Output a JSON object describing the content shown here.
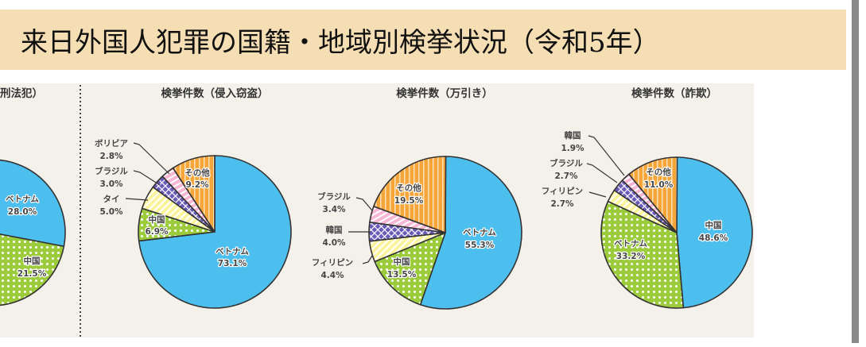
{
  "header": {
    "title": "来日外国人犯罪の国籍・地域別検挙状況（令和5年）"
  },
  "colors": {
    "header_bg": "#f5deb3",
    "panel_bg": "#f4f0ea",
    "blue": "#4dbfee",
    "green": "#9ccc3c",
    "yellow": "#fcf49c",
    "purple": "#6a5ab8",
    "pink": "#f6b6d4",
    "orange": "#f5a53a"
  },
  "chart_data": [
    {
      "type": "pie",
      "title": "刑法犯）",
      "slices": [
        {
          "label": "ベトナム",
          "value": 28.0,
          "display": "28.0%",
          "fill": "blue"
        },
        {
          "label": "中国",
          "value": 21.5,
          "display": "21.5%",
          "fill": "green"
        }
      ]
    },
    {
      "type": "pie",
      "title": "検挙件数（侵入窃盗）",
      "slices": [
        {
          "label": "ベトナム",
          "value": 73.1,
          "display": "73.1%",
          "fill": "blue"
        },
        {
          "label": "中国",
          "value": 6.9,
          "display": "6.9%",
          "fill": "green"
        },
        {
          "label": "タイ",
          "value": 5.0,
          "display": "5.0%",
          "fill": "yellow"
        },
        {
          "label": "ブラジル",
          "value": 3.0,
          "display": "3.0%",
          "fill": "purple"
        },
        {
          "label": "ボリビア",
          "value": 2.8,
          "display": "2.8%",
          "fill": "pink"
        },
        {
          "label": "その他",
          "value": 9.2,
          "display": "9.2%",
          "fill": "orange"
        }
      ]
    },
    {
      "type": "pie",
      "title": "検挙件数（万引き）",
      "slices": [
        {
          "label": "ベトナム",
          "value": 55.3,
          "display": "55.3%",
          "fill": "blue"
        },
        {
          "label": "中国",
          "value": 13.5,
          "display": "13.5%",
          "fill": "green"
        },
        {
          "label": "フィリピン",
          "value": 4.4,
          "display": "4.4%",
          "fill": "yellow"
        },
        {
          "label": "韓国",
          "value": 4.0,
          "display": "4.0%",
          "fill": "purple"
        },
        {
          "label": "ブラジル",
          "value": 3.4,
          "display": "3.4%",
          "fill": "pink"
        },
        {
          "label": "その他",
          "value": 19.5,
          "display": "19.5%",
          "fill": "orange"
        }
      ]
    },
    {
      "type": "pie",
      "title": "検挙件数（詐欺）",
      "slices": [
        {
          "label": "中国",
          "value": 48.6,
          "display": "48.6%",
          "fill": "blue"
        },
        {
          "label": "ベトナム",
          "value": 33.2,
          "display": "33.2%",
          "fill": "green"
        },
        {
          "label": "フィリピン",
          "value": 2.7,
          "display": "2.7%",
          "fill": "yellow"
        },
        {
          "label": "ブラジル",
          "value": 2.7,
          "display": "2.7%",
          "fill": "purple"
        },
        {
          "label": "韓国",
          "value": 1.9,
          "display": "1.9%",
          "fill": "pink"
        },
        {
          "label": "その他",
          "value": 11.0,
          "display": "11.0%",
          "fill": "orange"
        }
      ]
    }
  ]
}
